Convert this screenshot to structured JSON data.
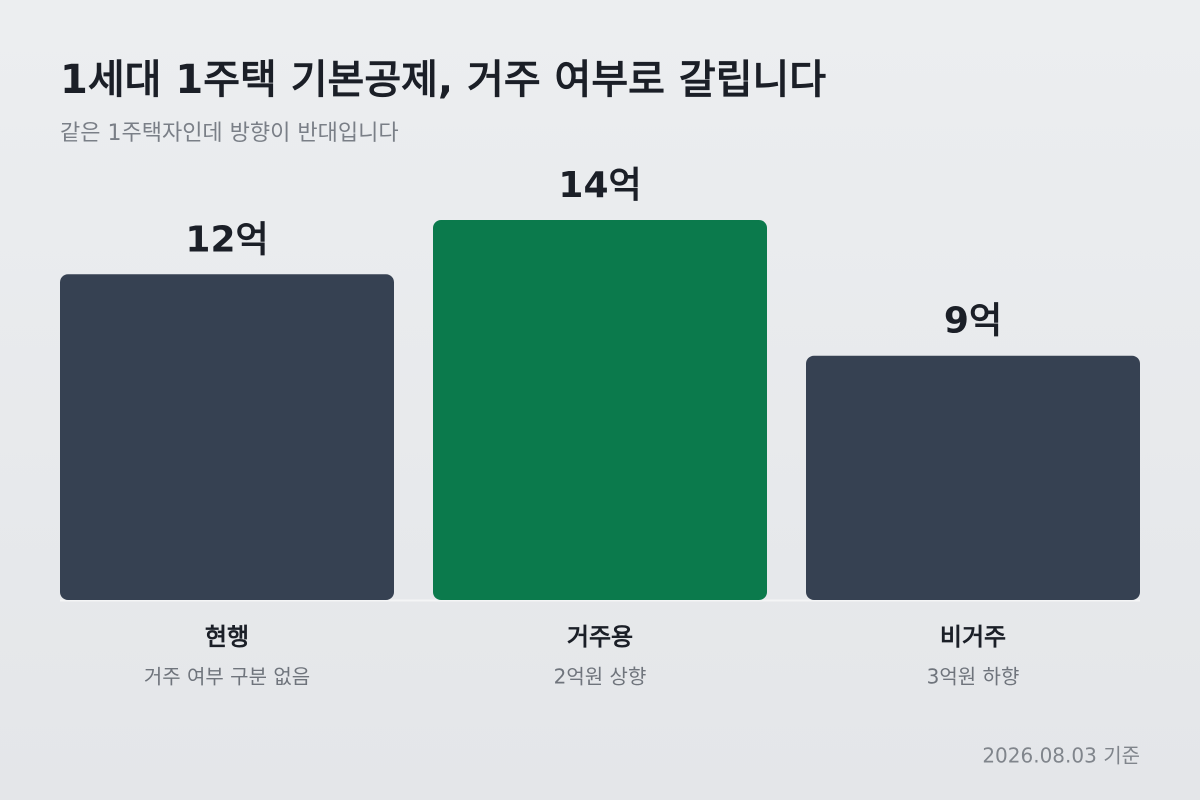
{
  "chart_data": {
    "type": "bar",
    "title": "1세대 1주택 기본공제, 거주 여부로 갈립니다",
    "subtitle": "같은 1주택자인데 방향이 반대입니다",
    "categories": [
      "현행",
      "거주용",
      "비거주"
    ],
    "category_notes": [
      "거주 여부 구분 없음",
      "2억원 상향",
      "3억원 하향"
    ],
    "values": [
      12,
      14,
      9
    ],
    "value_labels": [
      "12억",
      "14억",
      "9억"
    ],
    "colors": [
      "#364152",
      "#0b7a4c",
      "#364152"
    ],
    "footnote": "2026.08.03 기준"
  }
}
